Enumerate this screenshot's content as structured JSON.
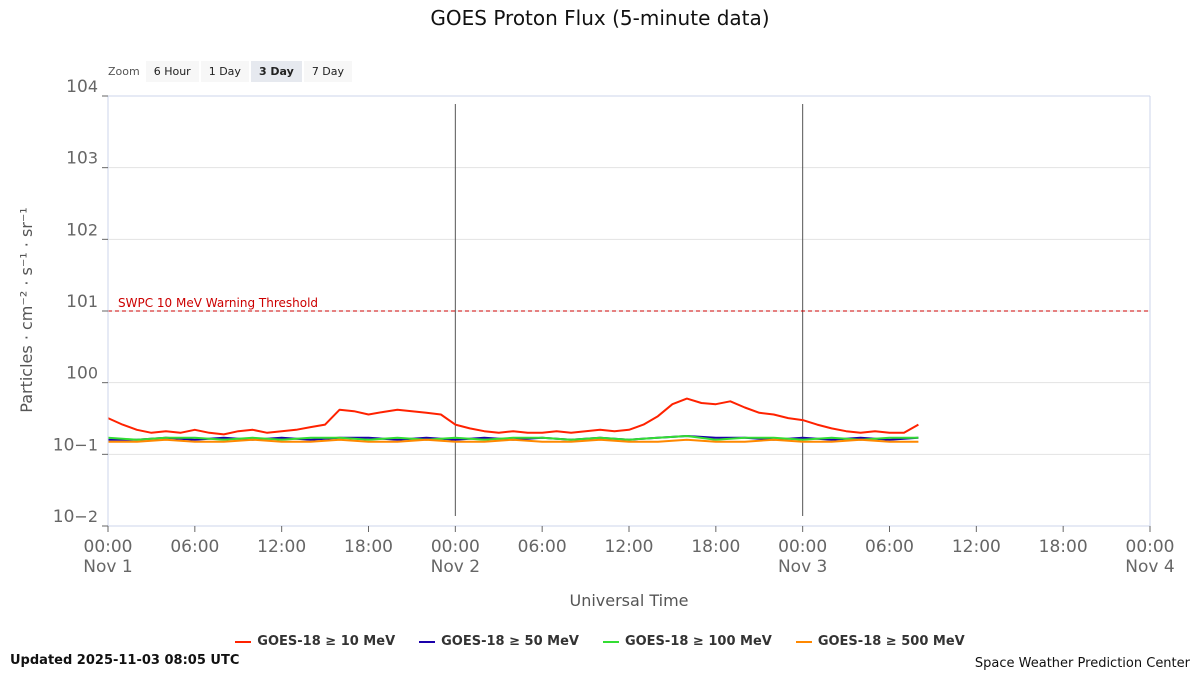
{
  "chart_data": {
    "type": "line",
    "title": "GOES Proton Flux (5-minute data)",
    "xlabel": "Universal Time",
    "ylabel": "Particles · cm⁻² · s⁻¹ · sr⁻¹",
    "yscale": "log",
    "ylim_exp": [
      -2,
      4
    ],
    "x_unit": "hours since Nov 1 00:00 UTC",
    "xlim": [
      0,
      72
    ],
    "y_ticks": [
      {
        "base": "10",
        "exp": "4"
      },
      {
        "base": "10",
        "exp": "3"
      },
      {
        "base": "10",
        "exp": "2"
      },
      {
        "base": "10",
        "exp": "1"
      },
      {
        "base": "10",
        "exp": "0"
      },
      {
        "base": "10",
        "exp": "−1"
      },
      {
        "base": "10",
        "exp": "−2"
      }
    ],
    "x_ticks": [
      {
        "time": "00:00",
        "date": "Nov 1"
      },
      {
        "time": "06:00",
        "date": ""
      },
      {
        "time": "12:00",
        "date": ""
      },
      {
        "time": "18:00",
        "date": ""
      },
      {
        "time": "00:00",
        "date": "Nov 2"
      },
      {
        "time": "06:00",
        "date": ""
      },
      {
        "time": "12:00",
        "date": ""
      },
      {
        "time": "18:00",
        "date": ""
      },
      {
        "time": "00:00",
        "date": "Nov 3"
      },
      {
        "time": "06:00",
        "date": ""
      },
      {
        "time": "12:00",
        "date": ""
      },
      {
        "time": "18:00",
        "date": ""
      },
      {
        "time": "00:00",
        "date": "Nov 4"
      }
    ],
    "day_boundaries_hours": [
      24,
      48
    ],
    "threshold": {
      "label": "SWPC 10 MeV Warning Threshold",
      "value": 10,
      "color": "#cc0000"
    },
    "series": [
      {
        "name": "GOES-18 ≥ 10 MeV",
        "color": "#ff2200",
        "x": [
          0,
          1,
          2,
          3,
          4,
          5,
          6,
          7,
          8,
          9,
          10,
          11,
          12,
          13,
          14,
          15,
          16,
          17,
          18,
          19,
          20,
          21,
          22,
          23,
          24,
          25,
          26,
          27,
          28,
          29,
          30,
          31,
          32,
          33,
          34,
          35,
          36,
          37,
          38,
          39,
          40,
          41,
          42,
          43,
          44,
          45,
          46,
          47,
          48,
          49,
          50,
          51,
          52,
          53,
          54,
          55,
          56
        ],
        "values": [
          0.32,
          0.26,
          0.22,
          0.2,
          0.21,
          0.2,
          0.22,
          0.2,
          0.19,
          0.21,
          0.22,
          0.2,
          0.21,
          0.22,
          0.24,
          0.26,
          0.42,
          0.4,
          0.36,
          0.39,
          0.42,
          0.4,
          0.38,
          0.36,
          0.26,
          0.23,
          0.21,
          0.2,
          0.21,
          0.2,
          0.2,
          0.21,
          0.2,
          0.21,
          0.22,
          0.21,
          0.22,
          0.26,
          0.34,
          0.5,
          0.6,
          0.52,
          0.5,
          0.55,
          0.45,
          0.38,
          0.36,
          0.32,
          0.3,
          0.26,
          0.23,
          0.21,
          0.2,
          0.21,
          0.2,
          0.2,
          0.26
        ]
      },
      {
        "name": "GOES-18 ≥ 50 MeV",
        "color": "#1a00aa",
        "x": [
          0,
          2,
          4,
          6,
          8,
          10,
          12,
          14,
          16,
          18,
          20,
          22,
          24,
          26,
          28,
          30,
          32,
          34,
          36,
          38,
          40,
          42,
          44,
          46,
          48,
          50,
          52,
          54,
          56
        ],
        "values": [
          0.16,
          0.16,
          0.17,
          0.16,
          0.17,
          0.16,
          0.17,
          0.16,
          0.17,
          0.17,
          0.16,
          0.17,
          0.16,
          0.17,
          0.16,
          0.17,
          0.16,
          0.17,
          0.16,
          0.17,
          0.18,
          0.17,
          0.17,
          0.16,
          0.17,
          0.16,
          0.17,
          0.16,
          0.17
        ]
      },
      {
        "name": "GOES-18 ≥ 100 MeV",
        "color": "#33dd33",
        "x": [
          0,
          2,
          4,
          6,
          8,
          10,
          12,
          14,
          16,
          18,
          20,
          22,
          24,
          26,
          28,
          30,
          32,
          34,
          36,
          38,
          40,
          42,
          44,
          46,
          48,
          50,
          52,
          54,
          56
        ],
        "values": [
          0.17,
          0.16,
          0.17,
          0.17,
          0.16,
          0.17,
          0.16,
          0.17,
          0.17,
          0.16,
          0.17,
          0.16,
          0.17,
          0.16,
          0.17,
          0.17,
          0.16,
          0.17,
          0.16,
          0.17,
          0.18,
          0.16,
          0.17,
          0.17,
          0.16,
          0.17,
          0.16,
          0.17,
          0.17
        ]
      },
      {
        "name": "GOES-18 ≥ 500 MeV",
        "color": "#ff8800",
        "x": [
          0,
          2,
          4,
          6,
          8,
          10,
          12,
          14,
          16,
          18,
          20,
          22,
          24,
          26,
          28,
          30,
          32,
          34,
          36,
          38,
          40,
          42,
          44,
          46,
          48,
          50,
          52,
          54,
          56
        ],
        "values": [
          0.15,
          0.15,
          0.16,
          0.15,
          0.15,
          0.16,
          0.15,
          0.15,
          0.16,
          0.15,
          0.15,
          0.16,
          0.15,
          0.15,
          0.16,
          0.15,
          0.15,
          0.16,
          0.15,
          0.15,
          0.16,
          0.15,
          0.15,
          0.16,
          0.15,
          0.15,
          0.16,
          0.15,
          0.15
        ]
      }
    ]
  },
  "zoom": {
    "label": "Zoom",
    "options": [
      "6 Hour",
      "1 Day",
      "3 Day",
      "7 Day"
    ],
    "active_index": 2
  },
  "footer": {
    "updated": "Updated 2025-11-03 08:05 UTC",
    "credit": "Space Weather Prediction Center"
  }
}
